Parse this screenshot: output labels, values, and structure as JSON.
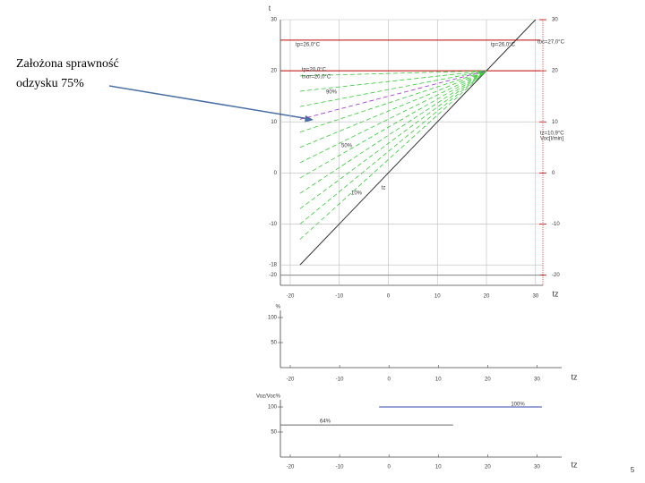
{
  "annotation": {
    "lines": [
      "Założona sprawność",
      "odzysku 75%"
    ]
  },
  "page_number": "5",
  "chart_data": [
    {
      "type": "line",
      "x_label": "tz",
      "y_label": "t",
      "xlim": [
        -22,
        31.5
      ],
      "ylim": [
        -22,
        30
      ],
      "xticks": [
        -20,
        -10,
        0,
        10,
        20,
        30
      ],
      "yticks": [
        30,
        20,
        10,
        0,
        -10,
        -18,
        -20
      ],
      "y2ticks": [
        30,
        20,
        10,
        0,
        -10,
        -20
      ],
      "grid": true,
      "series": [
        {
          "color": "#c00000",
          "x": [
            -22,
            31
          ],
          "values": [
            26,
            26
          ]
        },
        {
          "color": "#c00000",
          "x": [
            -22,
            31
          ],
          "values": [
            20,
            20
          ]
        },
        {
          "color": "#333333",
          "x": [
            -18,
            30
          ],
          "values": [
            -18,
            30
          ]
        },
        {
          "color": "#888888",
          "x": [
            -22,
            31
          ],
          "values": [
            -20,
            -20
          ]
        },
        {
          "color": "#33cc33",
          "dashed": true,
          "x": [
            -18,
            20
          ],
          "values": [
            19,
            20
          ]
        },
        {
          "color": "#33cc33",
          "dashed": true,
          "x": [
            -18,
            20
          ],
          "values": [
            16,
            20
          ]
        },
        {
          "color": "#33cc33",
          "dashed": true,
          "x": [
            -18,
            20
          ],
          "values": [
            13,
            20
          ]
        },
        {
          "color": "#33cc33",
          "dashed": true,
          "x": [
            -18,
            20
          ],
          "values": [
            8,
            20
          ]
        },
        {
          "color": "#33cc33",
          "dashed": true,
          "x": [
            -18,
            20
          ],
          "values": [
            5,
            20
          ]
        },
        {
          "color": "#33cc33",
          "dashed": true,
          "x": [
            -18,
            20
          ],
          "values": [
            2,
            20
          ]
        },
        {
          "color": "#33cc33",
          "dashed": true,
          "x": [
            -18,
            20
          ],
          "values": [
            -1,
            20
          ]
        },
        {
          "color": "#33cc33",
          "dashed": true,
          "x": [
            -18,
            20
          ],
          "values": [
            -4,
            20
          ]
        },
        {
          "color": "#33cc33",
          "dashed": true,
          "x": [
            -18,
            20
          ],
          "values": [
            -7,
            20
          ]
        },
        {
          "color": "#33cc33",
          "dashed": true,
          "x": [
            -18,
            20
          ],
          "values": [
            -10,
            20
          ]
        },
        {
          "color": "#33cc33",
          "dashed": true,
          "x": [
            -18,
            20
          ],
          "values": [
            -13,
            20
          ]
        },
        {
          "color": "#9933cc",
          "dashed": true,
          "x": [
            -18,
            20
          ],
          "values": [
            10.5,
            20
          ]
        }
      ],
      "labels": [
        "tp=26,0°C",
        "tp=20,0°C",
        "tnor=20,0°C",
        "tp=26,0°C",
        "toc=27,0°C",
        "tz=10,9°C",
        "Voc[l/min]",
        "90%",
        "50%",
        "10%",
        "tz"
      ]
    },
    {
      "type": "line",
      "x_label": "tz",
      "y_label": "%",
      "xlim": [
        -22,
        35
      ],
      "ylim": [
        0,
        100
      ],
      "xticks": [
        -20,
        -10,
        0,
        10,
        20,
        30
      ],
      "yticks": [
        100,
        50
      ],
      "grid": false,
      "series": [],
      "labels": []
    },
    {
      "type": "line",
      "x_label": "tz",
      "y_label": "Voz/Voc%",
      "xlim": [
        -22,
        35
      ],
      "ylim": [
        0,
        100
      ],
      "xticks": [
        -20,
        -10,
        0,
        10,
        20,
        30
      ],
      "yticks": [
        100,
        50
      ],
      "grid": false,
      "series": [
        {
          "color": "#3344aa",
          "x": [
            -2,
            31
          ],
          "values": [
            100,
            100
          ]
        },
        {
          "color": "#666666",
          "x": [
            -22,
            13
          ],
          "values": [
            64,
            64
          ]
        }
      ],
      "labels": [
        "100%",
        "64%"
      ]
    }
  ]
}
